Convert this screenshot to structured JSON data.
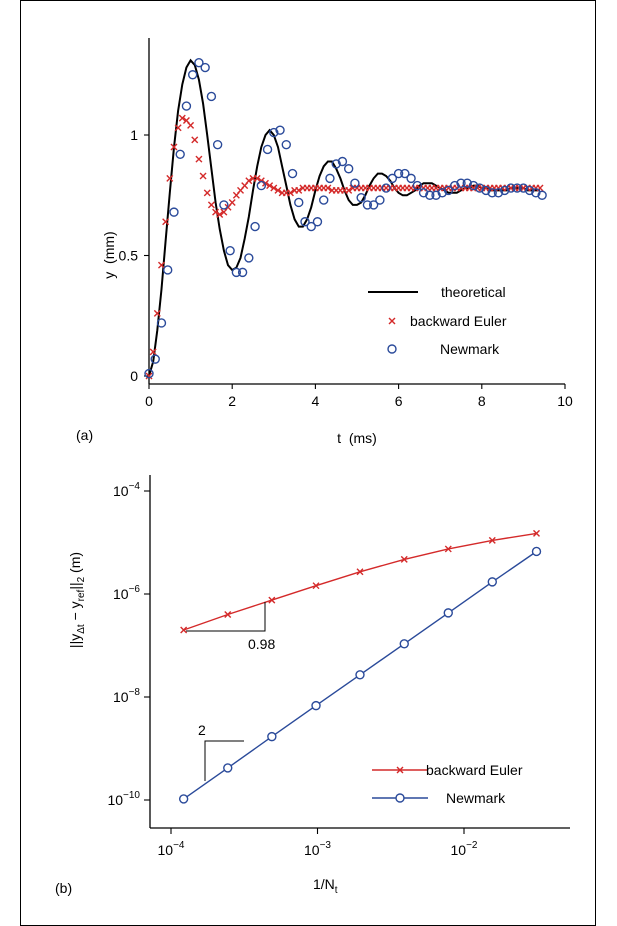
{
  "colors": {
    "theoretical": "#000000",
    "euler": "#d42a2a",
    "newmark": "#2a4a9a"
  },
  "chart_data": [
    {
      "panel_label": "(a)",
      "type": "line",
      "xlabel": "t  (ms)",
      "ylabel": "y  (mm)",
      "xlim": [
        0,
        10
      ],
      "ylim": [
        0,
        1.34
      ],
      "xticks": [
        0,
        2,
        4,
        6,
        8,
        10
      ],
      "xtick_labels": [
        "0",
        "2",
        "4",
        "6",
        "8",
        "10"
      ],
      "yticks": [
        0,
        0.5,
        1
      ],
      "ytick_labels": [
        "0",
        "0.5",
        "1"
      ],
      "legend": {
        "position": "bottom-right",
        "entries": [
          "theoretical",
          "backward Euler",
          "Newmark"
        ]
      },
      "series": [
        {
          "name": "theoretical",
          "marker": "line",
          "t": [
            0,
            0.1,
            0.2,
            0.3,
            0.4,
            0.5,
            0.6,
            0.7,
            0.8,
            0.9,
            1.0,
            1.1,
            1.2,
            1.3,
            1.4,
            1.5,
            1.6,
            1.7,
            1.8,
            1.9,
            2.0,
            2.1,
            2.2,
            2.3,
            2.4,
            2.5,
            2.6,
            2.7,
            2.8,
            2.9,
            3.0,
            3.1,
            3.2,
            3.3,
            3.4,
            3.5,
            3.6,
            3.7,
            3.8,
            3.9,
            4.0,
            4.1,
            4.2,
            4.3,
            4.4,
            4.5,
            4.6,
            4.7,
            4.8,
            4.9,
            5.0,
            5.1,
            5.2,
            5.3,
            5.4,
            5.5,
            5.6,
            5.7,
            5.8,
            5.9,
            6.0,
            6.1,
            6.2,
            6.3,
            6.4,
            6.5,
            6.6,
            6.7,
            6.8,
            6.9,
            7.0,
            7.1,
            7.2,
            7.3,
            7.4,
            7.5,
            7.6,
            7.7,
            7.8,
            7.9,
            8.0,
            8.1,
            8.2,
            8.3,
            8.4,
            8.5,
            8.6,
            8.7,
            8.8,
            8.9,
            9.0,
            9.1,
            9.2,
            9.3,
            9.4
          ],
          "y": [
            0,
            0.06,
            0.19,
            0.36,
            0.56,
            0.76,
            0.95,
            1.1,
            1.21,
            1.28,
            1.31,
            1.29,
            1.23,
            1.13,
            1.0,
            0.86,
            0.72,
            0.61,
            0.52,
            0.46,
            0.44,
            0.45,
            0.49,
            0.57,
            0.66,
            0.77,
            0.87,
            0.95,
            1.0,
            1.02,
            1.0,
            0.95,
            0.87,
            0.79,
            0.71,
            0.65,
            0.62,
            0.62,
            0.65,
            0.7,
            0.77,
            0.83,
            0.87,
            0.89,
            0.89,
            0.86,
            0.82,
            0.77,
            0.73,
            0.71,
            0.71,
            0.72,
            0.75,
            0.79,
            0.82,
            0.84,
            0.84,
            0.83,
            0.81,
            0.78,
            0.76,
            0.75,
            0.75,
            0.76,
            0.77,
            0.79,
            0.8,
            0.8,
            0.8,
            0.79,
            0.78,
            0.77,
            0.76,
            0.76,
            0.76,
            0.77,
            0.78,
            0.78,
            0.79,
            0.79,
            0.78,
            0.78,
            0.77,
            0.77,
            0.77,
            0.77,
            0.77,
            0.78,
            0.78,
            0.78,
            0.78,
            0.77,
            0.77,
            0.77,
            0.77
          ]
        },
        {
          "name": "backward Euler",
          "marker": "x",
          "t": [
            0,
            0.1,
            0.2,
            0.3,
            0.4,
            0.5,
            0.6,
            0.7,
            0.8,
            0.9,
            1.0,
            1.1,
            1.2,
            1.3,
            1.4,
            1.5,
            1.6,
            1.7,
            1.8,
            1.9,
            2.0,
            2.1,
            2.2,
            2.3,
            2.4,
            2.5,
            2.6,
            2.7,
            2.8,
            2.9,
            3.0,
            3.1,
            3.2,
            3.3,
            3.4,
            3.5,
            3.6,
            3.7,
            3.8,
            3.9,
            4.0,
            4.1,
            4.2,
            4.3,
            4.4,
            4.5,
            4.6,
            4.7,
            4.8,
            4.9,
            5.0,
            5.1,
            5.2,
            5.3,
            5.4,
            5.5,
            5.6,
            5.7,
            5.8,
            5.9,
            6.0,
            6.1,
            6.2,
            6.3,
            6.4,
            6.5,
            6.6,
            6.7,
            6.8,
            6.9,
            7.0,
            7.1,
            7.2,
            7.3,
            7.4,
            7.5,
            7.6,
            7.7,
            7.8,
            7.9,
            8.0,
            8.1,
            8.2,
            8.3,
            8.4,
            8.5,
            8.6,
            8.7,
            8.8,
            8.9,
            9.0,
            9.1,
            9.2,
            9.3,
            9.4
          ],
          "y": [
            0,
            0.1,
            0.26,
            0.46,
            0.64,
            0.82,
            0.95,
            1.03,
            1.07,
            1.06,
            1.04,
            0.98,
            0.9,
            0.83,
            0.76,
            0.71,
            0.68,
            0.67,
            0.68,
            0.7,
            0.72,
            0.75,
            0.77,
            0.79,
            0.81,
            0.82,
            0.82,
            0.81,
            0.8,
            0.79,
            0.78,
            0.77,
            0.76,
            0.76,
            0.76,
            0.77,
            0.77,
            0.78,
            0.78,
            0.78,
            0.78,
            0.78,
            0.78,
            0.78,
            0.77,
            0.77,
            0.77,
            0.77,
            0.77,
            0.78,
            0.78,
            0.78,
            0.78,
            0.78,
            0.78,
            0.78,
            0.78,
            0.78,
            0.78,
            0.78,
            0.78,
            0.78,
            0.78,
            0.78,
            0.78,
            0.78,
            0.78,
            0.78,
            0.78,
            0.78,
            0.78,
            0.78,
            0.78,
            0.78,
            0.78,
            0.78,
            0.78,
            0.78,
            0.78,
            0.78,
            0.78,
            0.78,
            0.78,
            0.78,
            0.78,
            0.78,
            0.78,
            0.78,
            0.78,
            0.78,
            0.78,
            0.78,
            0.78,
            0.78,
            0.78
          ]
        },
        {
          "name": "Newmark",
          "marker": "o",
          "t": [
            0,
            0.15,
            0.3,
            0.45,
            0.6,
            0.75,
            0.9,
            1.05,
            1.2,
            1.35,
            1.5,
            1.65,
            1.8,
            1.95,
            2.1,
            2.25,
            2.4,
            2.55,
            2.7,
            2.85,
            3.0,
            3.15,
            3.3,
            3.45,
            3.6,
            3.75,
            3.9,
            4.05,
            4.2,
            4.35,
            4.5,
            4.65,
            4.8,
            4.95,
            5.1,
            5.25,
            5.4,
            5.55,
            5.7,
            5.85,
            6.0,
            6.15,
            6.3,
            6.45,
            6.6,
            6.75,
            6.9,
            7.05,
            7.2,
            7.35,
            7.5,
            7.65,
            7.8,
            7.95,
            8.1,
            8.25,
            8.4,
            8.55,
            8.7,
            8.85,
            9.0,
            9.15,
            9.3,
            9.45
          ],
          "y": [
            0.01,
            0.07,
            0.22,
            0.44,
            0.68,
            0.92,
            1.12,
            1.25,
            1.3,
            1.28,
            1.16,
            0.96,
            0.71,
            0.52,
            0.43,
            0.43,
            0.49,
            0.62,
            0.79,
            0.94,
            1.01,
            1.02,
            0.96,
            0.84,
            0.72,
            0.64,
            0.62,
            0.64,
            0.73,
            0.82,
            0.88,
            0.89,
            0.86,
            0.8,
            0.74,
            0.71,
            0.71,
            0.73,
            0.78,
            0.82,
            0.84,
            0.84,
            0.82,
            0.79,
            0.76,
            0.75,
            0.75,
            0.76,
            0.77,
            0.79,
            0.8,
            0.8,
            0.79,
            0.78,
            0.77,
            0.76,
            0.76,
            0.77,
            0.78,
            0.78,
            0.78,
            0.77,
            0.76,
            0.75
          ]
        }
      ]
    },
    {
      "panel_label": "(b)",
      "type": "line",
      "scale": "log-log",
      "xlabel_main": "1/N",
      "xlabel_sub": "t",
      "ylabel_parts": [
        "||y",
        "Δt",
        " − y",
        "ref",
        "||",
        "2",
        " (m)"
      ],
      "xlim": [
        7e-05,
        0.05
      ],
      "ylim": [
        5e-11,
        0.00012
      ],
      "xticks": [
        0.0001,
        0.001,
        0.01
      ],
      "xtick_labels": [
        {
          "base": "10",
          "exp": "−4"
        },
        {
          "base": "10",
          "exp": "−3"
        },
        {
          "base": "10",
          "exp": "−2"
        }
      ],
      "yticks": [
        1e-10,
        1e-08,
        1e-06,
        0.0001
      ],
      "ytick_labels": [
        {
          "base": "10",
          "exp": "−10"
        },
        {
          "base": "10",
          "exp": "−8"
        },
        {
          "base": "10",
          "exp": "−6"
        },
        {
          "base": "10",
          "exp": "−4"
        }
      ],
      "legend": {
        "position": "bottom-right",
        "entries": [
          "backward Euler",
          "Newmark"
        ]
      },
      "slope_annotations": [
        "0.98",
        "2"
      ],
      "series": [
        {
          "name": "backward Euler",
          "marker": "x",
          "x": [
            0.000122,
            0.000244,
            0.000488,
            0.000977,
            0.00195,
            0.00391,
            0.00781,
            0.0156,
            0.03125
          ],
          "y": [
            2e-07,
            4e-07,
            7.6e-07,
            1.45e-06,
            2.7e-06,
            4.7e-06,
            7.5e-06,
            1.1e-05,
            1.5e-05
          ]
        },
        {
          "name": "Newmark",
          "marker": "o",
          "x": [
            0.000122,
            0.000244,
            0.000488,
            0.000977,
            0.00195,
            0.00391,
            0.00781,
            0.0156,
            0.03125
          ],
          "y": [
            1.05e-10,
            4.2e-10,
            1.7e-09,
            6.8e-09,
            2.7e-08,
            1.08e-07,
            4.3e-07,
            1.72e-06,
            6.7e-06
          ]
        }
      ]
    }
  ]
}
